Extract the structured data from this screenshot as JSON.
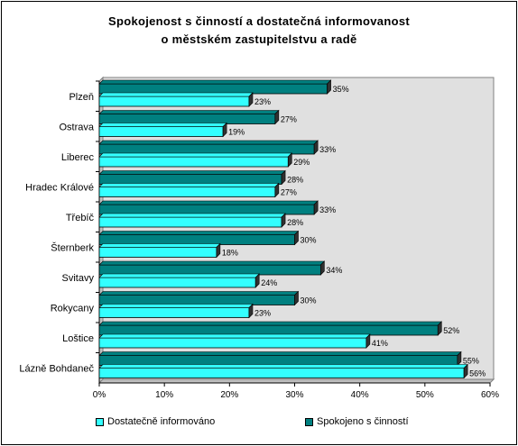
{
  "chart_data": {
    "type": "bar",
    "orientation": "horizontal",
    "title_line1": "Spokojenost s činností a dostatečná informovanost",
    "title_line2": "o městském zastupitelstvu a radě",
    "categories": [
      "Plzeň",
      "Ostrava",
      "Liberec",
      "Hradec Králové",
      "Třebíč",
      "Šternberk",
      "Svitavy",
      "Rokycany",
      "Loštice",
      "Lázně Bohdaneč"
    ],
    "series": [
      {
        "name": "Spokojeno s činností",
        "color": "#008080",
        "values": [
          35,
          27,
          33,
          28,
          33,
          30,
          34,
          30,
          52,
          55
        ]
      },
      {
        "name": "Dostatečně informováno",
        "color": "#33ffff",
        "values": [
          23,
          19,
          29,
          27,
          28,
          18,
          24,
          23,
          41,
          56
        ]
      }
    ],
    "xlim": [
      0,
      60
    ],
    "x_ticks": [
      "0%",
      "10%",
      "20%",
      "30%",
      "40%",
      "50%",
      "60%"
    ],
    "grid": false,
    "legend_position": "bottom",
    "value_suffix": "%",
    "plot_background": "#e0e0e0"
  }
}
